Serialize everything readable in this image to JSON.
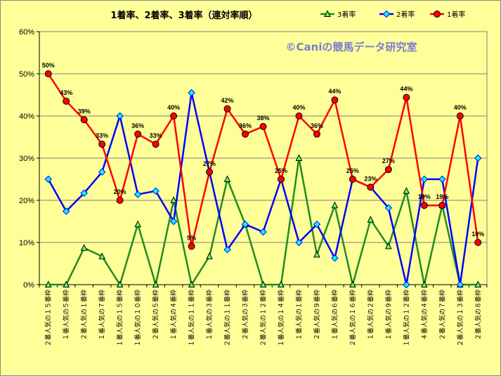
{
  "chart_data": {
    "type": "line",
    "title": "1着率、2着率、3着率（連対率順）",
    "watermark": "©Caniの競馬データ研究室",
    "y_ticks": [
      "0%",
      "10%",
      "20%",
      "30%",
      "40%",
      "50%",
      "60%"
    ],
    "ylim": [
      0,
      60
    ],
    "grid": true,
    "legend_position": "top-right",
    "categories": [
      "２番人気の１５番枠",
      "１番人気の５番枠",
      "２番人気の１番枠",
      "１番人気の７番枠",
      "１番人気の１５番枠",
      "１番人気の１０番枠",
      "２番人気の５番枠",
      "１番人気の４番枠",
      "１番人気の１１番枠",
      "１番人気の３番枠",
      "２番人気の１１番枠",
      "２番人気の３番枠",
      "２番人気の１２番枠",
      "１番人気の１４番枠",
      "１番人気の１番枠",
      "２番人気の９番枠",
      "１番人気の６番枠",
      "２番人気の１６番枠",
      "１番人気の２番枠",
      "１番人気の９番枠",
      "１番人気の１２番枠",
      "４番人気の４番枠",
      "２番人気の７番枠",
      "２番人気の１３番枠",
      "２番人気の８番枠"
    ],
    "series": [
      {
        "name": "3着率",
        "color": "#228b22",
        "marker": "triangle",
        "values": [
          0,
          0,
          8.7,
          6.7,
          0,
          14.3,
          0,
          20,
          0,
          6.7,
          25,
          14.3,
          0,
          0,
          30,
          7.1,
          18.8,
          0,
          15.4,
          9.1,
          22.2,
          0,
          18.8,
          0,
          0
        ]
      },
      {
        "name": "2着率",
        "color": "#0000ff",
        "marker": "diamond",
        "values": [
          25,
          17.4,
          21.7,
          26.7,
          40,
          21.4,
          22.2,
          15,
          45.5,
          26.7,
          8.3,
          14.3,
          12.5,
          25,
          10,
          14.3,
          6.3,
          25,
          23.1,
          18.2,
          0,
          25,
          25,
          0,
          30
        ]
      },
      {
        "name": "1着率",
        "color": "#ff0000",
        "marker": "circle",
        "values": [
          50,
          43.5,
          39.1,
          33.3,
          20,
          35.7,
          33.3,
          40,
          9.1,
          26.7,
          41.7,
          35.7,
          37.5,
          25,
          40,
          35.7,
          43.8,
          25,
          23.1,
          27.3,
          44.4,
          18.8,
          18.8,
          40,
          10
        ],
        "data_labels": [
          "50%",
          "43%",
          "39%",
          "33%",
          "20%",
          "36%",
          "33%",
          "40%",
          "9%",
          "27%",
          "42%",
          "36%",
          "38%",
          "25%",
          "40%",
          "36%",
          "44%",
          "25%",
          "23%",
          "27%",
          "44%",
          "19%",
          "19%",
          "40%",
          "10%"
        ]
      }
    ]
  }
}
